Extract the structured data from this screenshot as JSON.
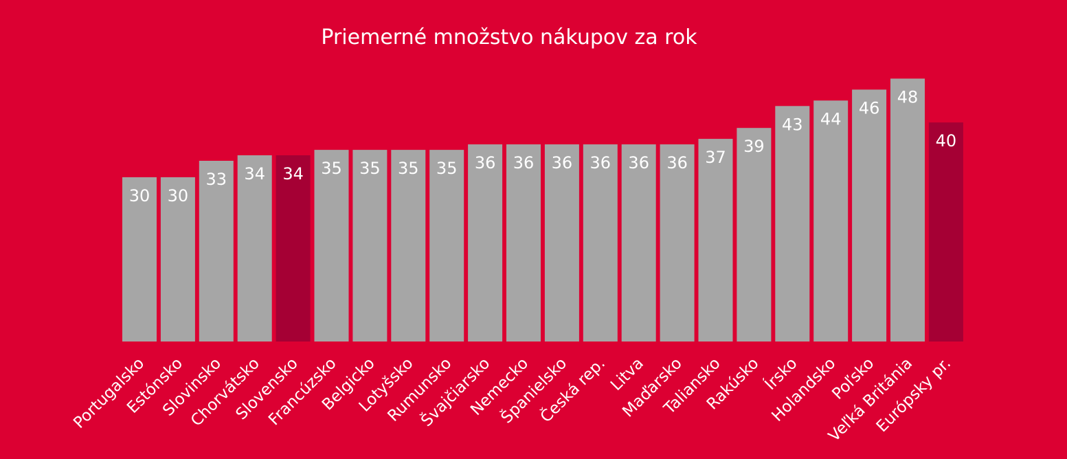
{
  "chart_data": {
    "type": "bar",
    "title": "Priemerné  množstvo nákupov za rok",
    "xlabel": "",
    "ylabel": "",
    "ylim": [
      0,
      48
    ],
    "grid": false,
    "legend": "none",
    "categories": [
      "Portugalsko",
      "Estónsko",
      "Slovinsko",
      "Chorvátsko",
      "Slovensko",
      "Francúzsko",
      "Belgicko",
      "Lotyšsko",
      "Rumunsko",
      "Švajčiarsko",
      "Nemecko",
      "Španielsko",
      "Česká rep.",
      "Litva",
      "Maďarsko",
      "Taliansko",
      "Rakúsko",
      "Írsko",
      "Holandsko",
      "Poľsko",
      "Veľká Británia",
      "Európsky pr."
    ],
    "values": [
      30,
      30,
      33,
      34,
      34,
      35,
      35,
      35,
      35,
      36,
      36,
      36,
      36,
      36,
      36,
      37,
      39,
      43,
      44,
      46,
      48,
      40
    ],
    "value_labels": [
      "30",
      "30",
      "33",
      "34",
      "34",
      "35",
      "35",
      "35",
      "35",
      "36",
      "36",
      "36",
      "36",
      "36",
      "36",
      "37",
      "39",
      "43",
      "44",
      "46",
      "48",
      "40"
    ],
    "highlighted": [
      "Slovensko",
      "Európsky pr."
    ]
  },
  "colors": {
    "background": "#dc0032",
    "bar": "#a6a6a6",
    "bar_highlight": "#a50034",
    "text": "#ffffff"
  }
}
